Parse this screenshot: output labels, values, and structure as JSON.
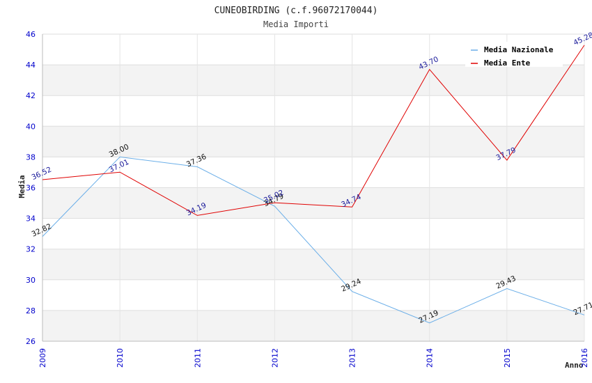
{
  "chart_data": {
    "type": "line",
    "title": "CUNEOBIRDING (c.f.96072170044)",
    "subtitle": "Media Importi",
    "xlabel": "Anno",
    "ylabel": "Media",
    "ylim": [
      26,
      46
    ],
    "yticks": [
      "26",
      "28",
      "30",
      "32",
      "34",
      "36",
      "38",
      "40",
      "42",
      "44",
      "46"
    ],
    "categories": [
      "2009",
      "2010",
      "2011",
      "2012",
      "2013",
      "2014",
      "2015",
      "2016"
    ],
    "series": [
      {
        "name": "Media Nazionale",
        "color": "#6aaee8",
        "values": [
          32.82,
          38.0,
          37.36,
          34.79,
          29.24,
          27.19,
          29.43,
          27.71
        ],
        "labels": [
          "32.82",
          "38.00",
          "37.36",
          "34.79",
          "29.24",
          "27.19",
          "29.43",
          "27.71"
        ]
      },
      {
        "name": "Media Ente",
        "color": "#e00000",
        "values": [
          36.52,
          37.01,
          34.19,
          35.02,
          34.74,
          43.7,
          37.79,
          45.28
        ],
        "labels": [
          "36.52",
          "37.01",
          "34.19",
          "35.02",
          "34.74",
          "43.70",
          "37.79",
          "45.28"
        ]
      }
    ],
    "grid": true,
    "legend_position": "top-right"
  }
}
